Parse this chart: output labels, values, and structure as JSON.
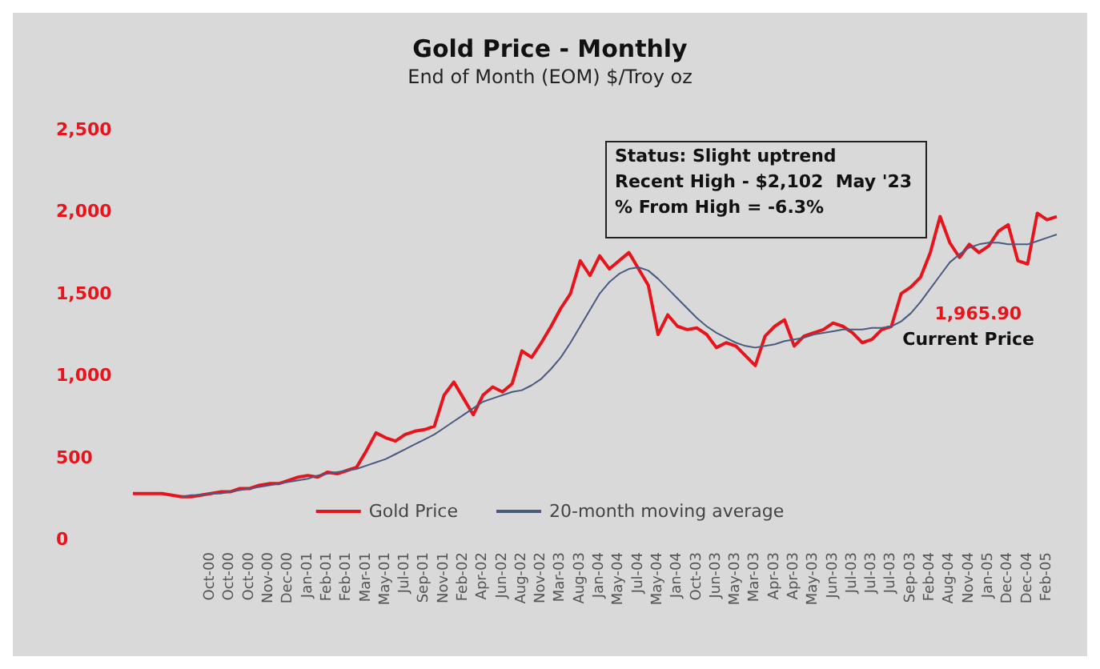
{
  "chart_data": {
    "type": "line",
    "title": "Gold Price - Monthly",
    "subtitle": "End of Month (EOM) $/Troy oz",
    "categories": [
      null,
      null,
      null,
      null,
      null,
      null,
      null,
      null,
      "Oct-00",
      null,
      "Oct-00",
      null,
      "Oct-00",
      null,
      "Nov-00",
      null,
      "Dec-00",
      null,
      "Jan-01",
      null,
      "Feb-01",
      null,
      "Feb-01",
      null,
      "Mar-01",
      null,
      "May-01",
      null,
      "Jul-01",
      null,
      "Sep-01",
      null,
      "Nov-01",
      null,
      "Feb-02",
      null,
      "Apr-02",
      null,
      "Jun-02",
      null,
      "Aug-02",
      null,
      "Nov-02",
      null,
      "Mar-03",
      null,
      "Aug-03",
      null,
      "Jan-04",
      null,
      "May-04",
      null,
      "Jul-04",
      null,
      "May-04",
      null,
      "Jan-04",
      null,
      "Oct-03",
      null,
      "Jun-03",
      null,
      "May-03",
      null,
      "Mar-03",
      null,
      "Apr-03",
      null,
      "Apr-03",
      null,
      "May-03",
      null,
      "Jun-03",
      null,
      "Jul-03",
      null,
      "Jul-03",
      null,
      "Jul-03",
      null,
      "Sep-03",
      null,
      "Feb-04",
      null,
      "Aug-04",
      null,
      "Nov-04",
      null,
      "Jan-05",
      null,
      "Dec-04",
      null,
      "Dec-04",
      null,
      "Feb-05",
      null
    ],
    "series": [
      {
        "name": "Gold Price",
        "color": "#e8141c",
        "values": [
          280,
          280,
          280,
          280,
          270,
          260,
          260,
          270,
          280,
          290,
          290,
          310,
          310,
          330,
          340,
          340,
          360,
          380,
          390,
          380,
          410,
          400,
          420,
          440,
          540,
          650,
          620,
          600,
          640,
          660,
          670,
          690,
          880,
          960,
          860,
          760,
          880,
          930,
          900,
          950,
          1150,
          1110,
          1200,
          1300,
          1410,
          1500,
          1700,
          1610,
          1730,
          1650,
          1700,
          1750,
          1650,
          1550,
          1250,
          1370,
          1300,
          1280,
          1290,
          1250,
          1170,
          1200,
          1180,
          1120,
          1060,
          1240,
          1300,
          1340,
          1180,
          1240,
          1260,
          1280,
          1320,
          1300,
          1260,
          1200,
          1220,
          1280,
          1300,
          1500,
          1540,
          1600,
          1750,
          1970,
          1810,
          1720,
          1800,
          1750,
          1790,
          1880,
          1920,
          1700,
          1680,
          1990,
          1950,
          1970
        ]
      },
      {
        "name": "20-month moving average",
        "color": "#4a5a80",
        "values": [
          null,
          null,
          null,
          null,
          null,
          260,
          270,
          270,
          280,
          280,
          290,
          300,
          310,
          320,
          330,
          340,
          350,
          360,
          370,
          390,
          400,
          410,
          420,
          430,
          450,
          470,
          490,
          520,
          550,
          580,
          610,
          640,
          680,
          720,
          760,
          800,
          840,
          860,
          880,
          900,
          910,
          940,
          980,
          1040,
          1110,
          1200,
          1300,
          1400,
          1500,
          1570,
          1620,
          1650,
          1660,
          1640,
          1590,
          1530,
          1470,
          1410,
          1350,
          1300,
          1260,
          1230,
          1200,
          1180,
          1170,
          1180,
          1190,
          1210,
          1220,
          1230,
          1250,
          1260,
          1270,
          1280,
          1280,
          1280,
          1290,
          1290,
          1300,
          1330,
          1380,
          1450,
          1530,
          1610,
          1690,
          1740,
          1780,
          1800,
          1810,
          1810,
          1800,
          1800,
          1800,
          1820,
          1840,
          1860
        ]
      }
    ],
    "ylim": [
      0,
      2500
    ],
    "yticks": [
      0,
      500,
      {
        "value": 1000,
        "label": "1,000"
      },
      {
        "value": 1500,
        "label": "1,500"
      },
      {
        "value": 2000,
        "label": "2,000"
      },
      {
        "value": 2500,
        "label": "2,500"
      }
    ],
    "annotations": [
      "Status: Slight uptrend",
      "Recent High - $2,102  May '23",
      "% From High = -6.3%",
      "1,965.90",
      "Current Price"
    ],
    "legend": "bottom",
    "grid": false,
    "marker": "none",
    "line_style": "solid"
  }
}
